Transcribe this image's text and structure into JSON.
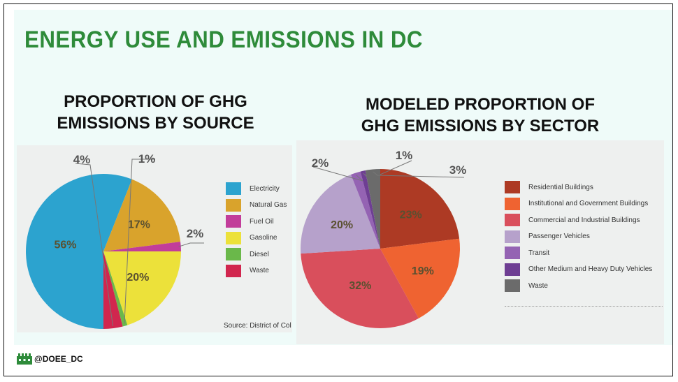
{
  "title": "ENERGY USE AND EMISSIONS IN DC",
  "handle": "@DOEE_DC",
  "colors": {
    "title_green": "#2e8b3a"
  },
  "chart_data": [
    {
      "type": "pie",
      "title": "PROPORTION OF GHG EMISSIONS BY SOURCE",
      "title_lines": [
        "PROPORTION OF GHG",
        "EMISSIONS BY SOURCE"
      ],
      "source": "Source: District of Col",
      "slices": [
        {
          "label": "Electricity",
          "value": 56,
          "display": "56%",
          "color": "#2ca3cf"
        },
        {
          "label": "Natural Gas",
          "value": 17,
          "display": "17%",
          "color": "#d9a32c"
        },
        {
          "label": "Fuel Oil",
          "value": 2,
          "display": "2%",
          "color": "#c23d9a"
        },
        {
          "label": "Gasoline",
          "value": 20,
          "display": "20%",
          "color": "#ece13a"
        },
        {
          "label": "Diesel",
          "value": 1,
          "display": "1%",
          "color": "#6ab84a"
        },
        {
          "label": "Waste",
          "value": 4,
          "display": "4%",
          "color": "#d1264e"
        }
      ],
      "legend": [
        "Electricity",
        "Natural Gas",
        "Fuel Oil",
        "Gasoline",
        "Diesel",
        "Waste"
      ]
    },
    {
      "type": "pie",
      "title": "MODELED PROPORTION OF GHG EMISSIONS BY SECTOR",
      "title_lines": [
        "MODELED PROPORTION OF",
        "GHG EMISSIONS BY SECTOR"
      ],
      "slices": [
        {
          "label": "Residential Buildings",
          "value": 23,
          "display": "23%",
          "color": "#ad3a24"
        },
        {
          "label": "Institutional and Government Buildings",
          "value": 19,
          "display": "19%",
          "color": "#ef6331"
        },
        {
          "label": "Commercial and Industrial Buildings",
          "value": 32,
          "display": "32%",
          "color": "#d94f5c"
        },
        {
          "label": "Passenger Vehicles",
          "value": 20,
          "display": "20%",
          "color": "#b6a1cb"
        },
        {
          "label": "Transit",
          "value": 2,
          "display": "2%",
          "color": "#9463b3"
        },
        {
          "label": "Other Medium and Heavy Duty Vehicles",
          "value": 1,
          "display": "1%",
          "color": "#6e3e93"
        },
        {
          "label": "Waste",
          "value": 3,
          "display": "3%",
          "color": "#6b6b6b"
        }
      ],
      "legend": [
        "Residential Buildings",
        "Institutional and Government Buildings",
        "Commercial and Industrial Buildings",
        "Passenger Vehicles",
        "Transit",
        "Other Medium and Heavy Duty Vehicles",
        "Waste"
      ]
    }
  ]
}
